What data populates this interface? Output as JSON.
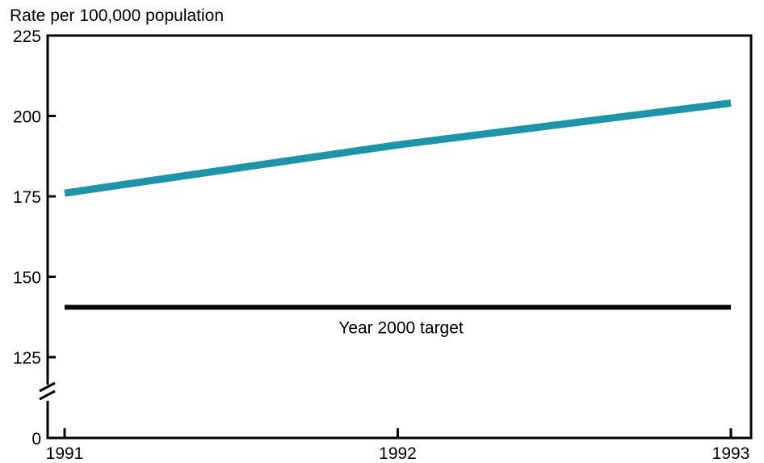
{
  "chart_data": {
    "type": "line",
    "ylabel": "Rate per 100,000 population",
    "x": [
      1991,
      1992,
      1993
    ],
    "x_tick_labels": [
      "1991",
      "1992",
      "1993"
    ],
    "y_ticks": [
      0,
      125,
      150,
      175,
      200,
      225
    ],
    "y_tick_labels": [
      "0",
      "125",
      "150",
      "175",
      "200",
      "225"
    ],
    "y_axis_break": [
      0,
      125
    ],
    "ylim": [
      0,
      225
    ],
    "series": [
      {
        "values": [
          176,
          191,
          204
        ],
        "color": "#1a95aa"
      }
    ],
    "reference_line": {
      "value": 140.5,
      "label": "Year 2000 target",
      "color": "#000000"
    },
    "grid": false
  }
}
